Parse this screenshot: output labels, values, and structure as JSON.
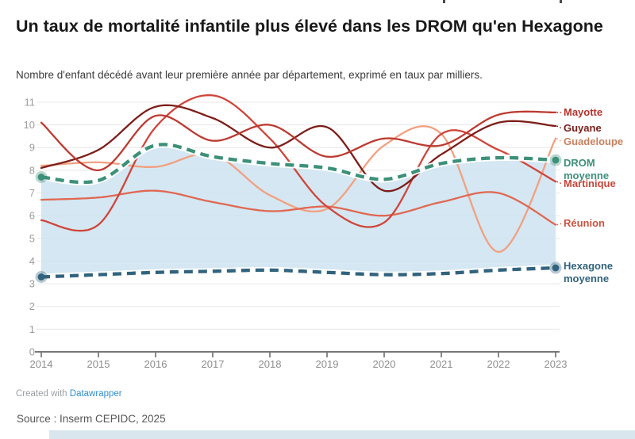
{
  "page": {
    "title": "Un taux de mortalité infantile plus élevé dans les DROM qu'en Hexagone",
    "subtitle": "Nombre d'enfant décédé avant leur première année par département, exprimé en taux par milliers.",
    "footer_created": "Created with ",
    "footer_brand": "Datawrapper",
    "source": "Source : Inserm CEPIDC, 2025"
  },
  "colors": {
    "background": "#ffffff",
    "band_fill": "#cde3f0",
    "grid": "#e7e7e7",
    "axis": "#4a4a4a",
    "y_tick_label": "#9c9c9c",
    "x_tick_label": "#8d8d8d",
    "title": "#191919",
    "subtitle": "#3a3a3a",
    "link_blue": "#2f8fce",
    "bottom_strip": "#d9e6ee"
  },
  "chart_data": {
    "type": "line",
    "title": "Un taux de mortalité infantile plus élevé dans les DROM qu'en Hexagone",
    "subtitle": "Nombre d'enfant décédé avant leur première année par département, exprimé en taux par milliers.",
    "unit": "taux par milliers",
    "x": [
      2014,
      2015,
      2016,
      2017,
      2018,
      2019,
      2020,
      2021,
      2022,
      2023
    ],
    "y_ticks": [
      0,
      1,
      2,
      3,
      4,
      5,
      6,
      7,
      8,
      9,
      10,
      11
    ],
    "ylim": [
      0,
      11.5
    ],
    "grid": "horizontal",
    "legend_position": "right-direct-labels",
    "series": [
      {
        "name": "Guadeloupe",
        "label": "Guadeloupe",
        "color": "#f2a080",
        "label_color": "#c9805f",
        "dashed": false,
        "values": [
          8.2,
          8.35,
          8.15,
          8.7,
          6.9,
          6.3,
          9.1,
          9.6,
          4.4,
          9.4
        ]
      },
      {
        "name": "Réunion",
        "label": "Réunion",
        "color": "#e06852",
        "label_color": "#cb523f",
        "dashed": false,
        "values": [
          6.7,
          6.8,
          7.1,
          6.6,
          6.2,
          6.4,
          6.0,
          6.6,
          7.0,
          5.6
        ]
      },
      {
        "name": "Martinique",
        "label": "Martinique",
        "color": "#d0453a",
        "label_color": "#c5463a",
        "dashed": false,
        "values": [
          5.8,
          5.6,
          9.9,
          11.3,
          9.4,
          6.4,
          5.7,
          9.6,
          8.9,
          7.5
        ]
      },
      {
        "name": "Guyane",
        "label": "Guyane",
        "color": "#7d1e19",
        "label_color": "#7d1e19",
        "dashed": false,
        "values": [
          8.1,
          8.9,
          10.8,
          10.3,
          9.0,
          9.9,
          7.1,
          8.7,
          10.1,
          9.95
        ]
      },
      {
        "name": "Mayotte",
        "label": "Mayotte",
        "color": "#bc3a30",
        "label_color": "#b5332d",
        "dashed": false,
        "values": [
          10.1,
          8.0,
          10.4,
          9.3,
          10.0,
          8.6,
          9.4,
          9.1,
          10.45,
          10.55
        ]
      },
      {
        "name": "DROM moyenne",
        "label": "DROM moyenne",
        "color": "#3d9079",
        "label_color": "#3d9079",
        "dashed": true,
        "values": [
          7.7,
          7.55,
          9.1,
          8.6,
          8.3,
          8.1,
          7.6,
          8.3,
          8.55,
          8.45
        ]
      },
      {
        "name": "Hexagone moyenne",
        "label": "Hexagone moyenne",
        "color": "#31637e",
        "label_color": "#31637e",
        "dashed": true,
        "values": [
          3.3,
          3.4,
          3.5,
          3.55,
          3.6,
          3.5,
          3.4,
          3.45,
          3.6,
          3.7
        ]
      }
    ],
    "band_between": [
      "DROM moyenne",
      "Hexagone moyenne"
    ]
  }
}
